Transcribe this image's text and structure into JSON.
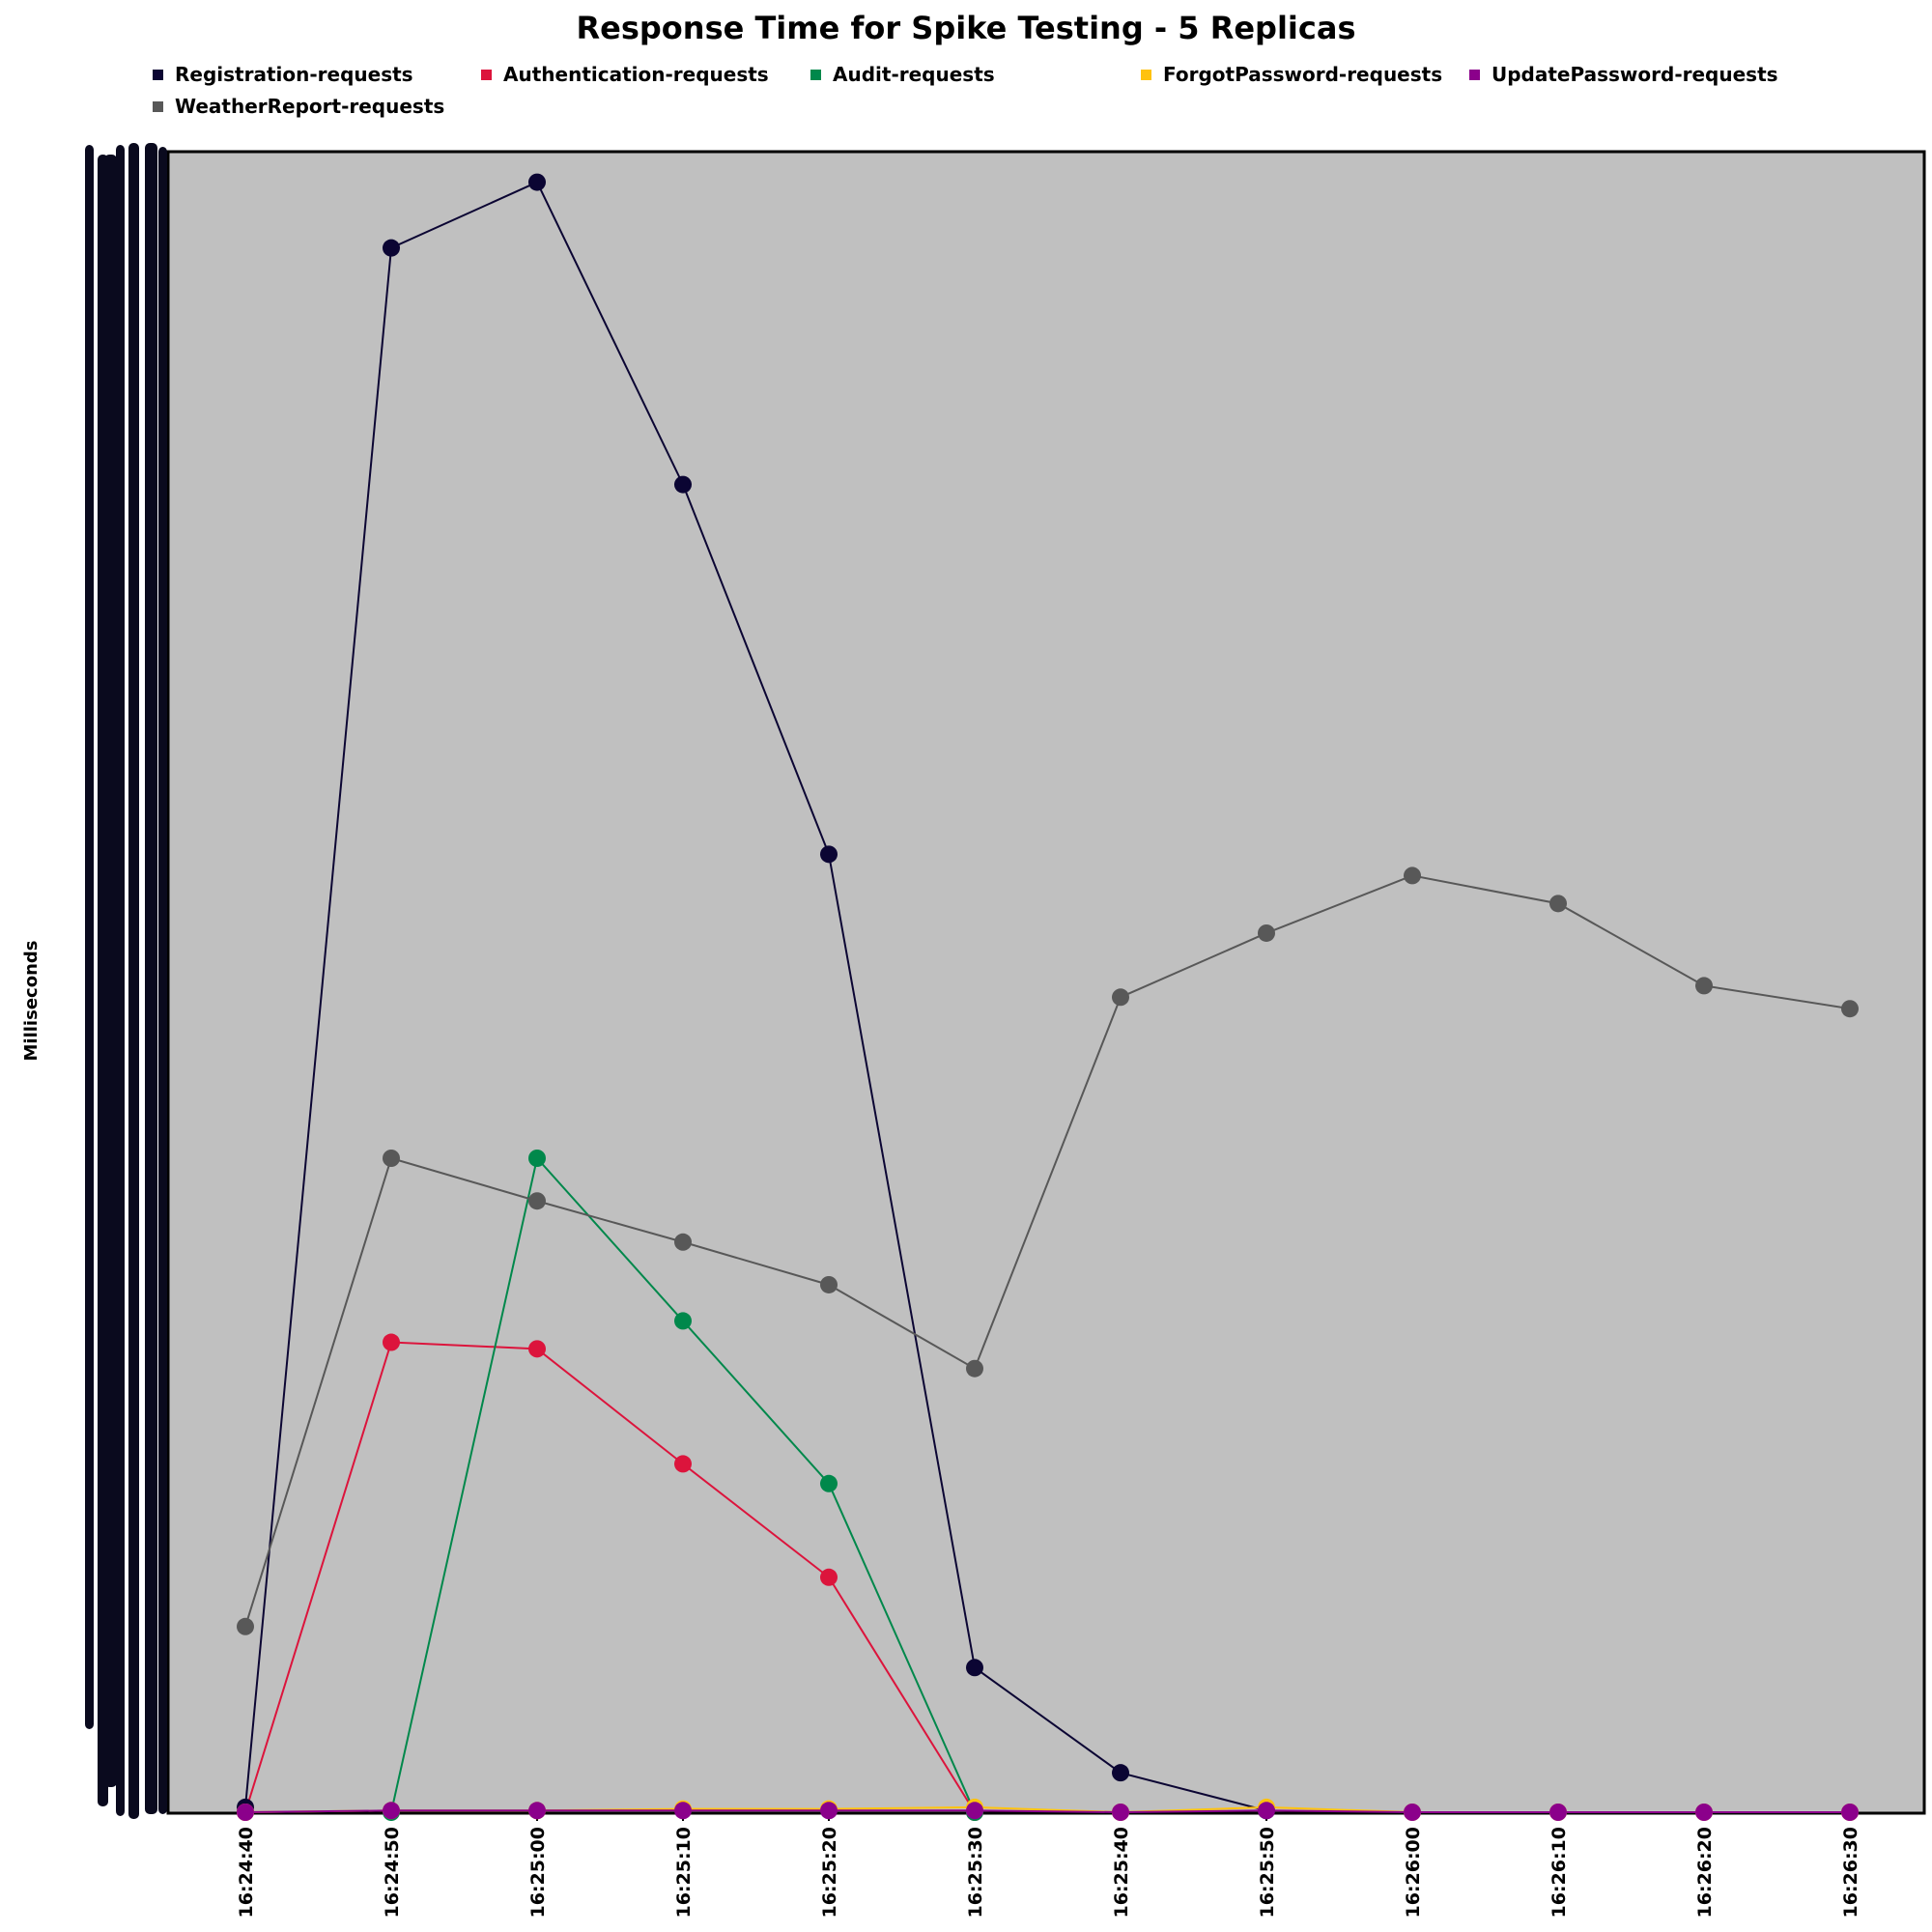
{
  "chart_data": {
    "type": "line",
    "title": "Response Time for Spike Testing - 5 Replicas",
    "ylabel": "Milliseconds",
    "xlabel": "",
    "x": [
      "16:24:40",
      "16:24:50",
      "16:25:00",
      "16:25:10",
      "16:25:20",
      "16:25:30",
      "16:25:40",
      "16:25:50",
      "16:26:00",
      "16:26:10",
      "16:26:20",
      "16:26:30"
    ],
    "ylim": [
      0,
      1000
    ],
    "y_tick_labels_legible": false,
    "background": "#c0c0c0",
    "legend_position": "top",
    "series": [
      {
        "name": "Registration-requests",
        "color": "#0b0533",
        "values": [
          3,
          952,
          992,
          808,
          583,
          88,
          24,
          1,
          null,
          null,
          null,
          null
        ]
      },
      {
        "name": "Authentication-requests",
        "color": "#dc143c",
        "values": [
          0,
          286,
          282,
          212,
          143,
          0,
          null,
          null,
          null,
          null,
          null,
          null
        ]
      },
      {
        "name": "Audit-requests",
        "color": "#00884b",
        "values": [
          null,
          0,
          398,
          299,
          200,
          0,
          null,
          null,
          null,
          null,
          null,
          null
        ]
      },
      {
        "name": "ForgotPassword-requests",
        "color": "#ffc20e",
        "values": [
          0,
          1,
          1,
          2,
          2,
          3,
          0,
          3,
          0,
          0,
          0,
          0
        ]
      },
      {
        "name": "UpdatePassword-requests",
        "color": "#8b008b",
        "values": [
          0,
          1,
          1,
          1,
          1,
          1,
          0,
          1,
          0,
          0,
          0,
          0
        ]
      },
      {
        "name": "WeatherReport-requests",
        "color": "#585858",
        "values": [
          113,
          398,
          372,
          347,
          321,
          270,
          496,
          535,
          570,
          553,
          503,
          489
        ]
      }
    ]
  }
}
